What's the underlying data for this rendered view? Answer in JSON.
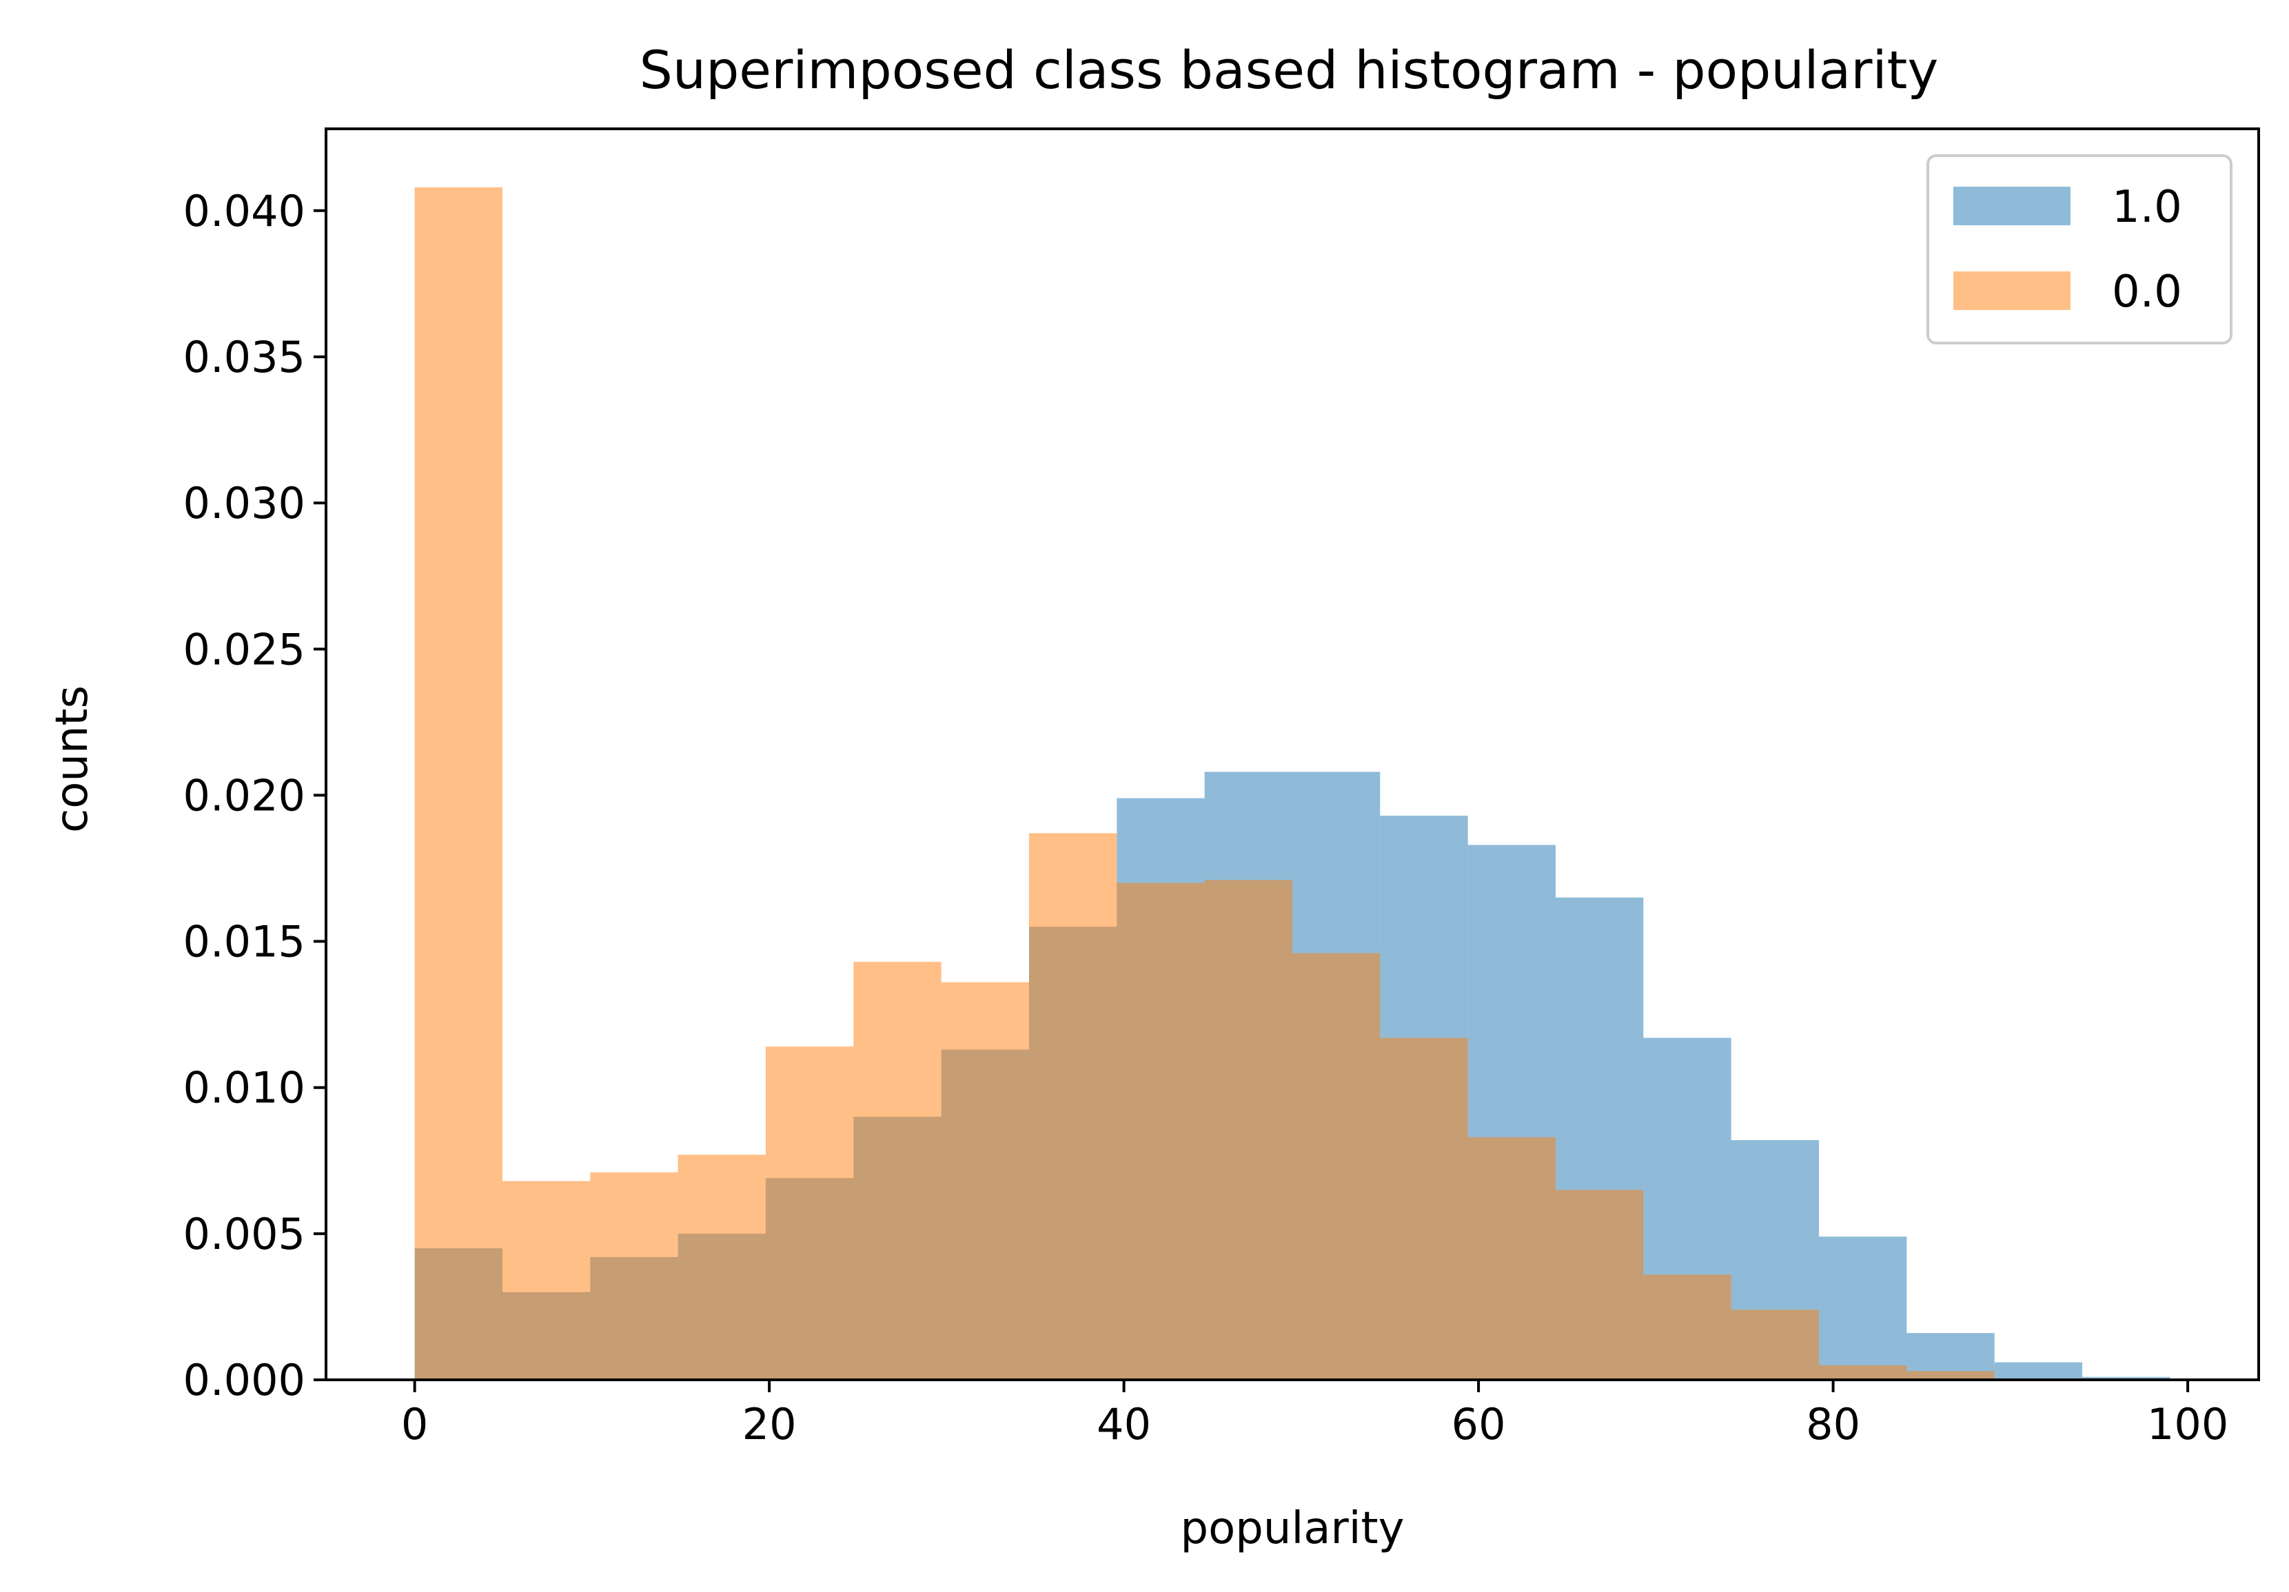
{
  "chart_data": {
    "type": "bar",
    "title": "Superimposed class based histogram - popularity",
    "xlabel": "popularity",
    "ylabel": "counts",
    "xlim": [
      -5,
      104
    ],
    "ylim": [
      0,
      0.0428
    ],
    "xticks": [
      0,
      20,
      40,
      60,
      80,
      100
    ],
    "xtick_labels": [
      "0",
      "20",
      "40",
      "60",
      "80",
      "100"
    ],
    "yticks": [
      0,
      0.005,
      0.01,
      0.015,
      0.02,
      0.025,
      0.03,
      0.035,
      0.04
    ],
    "ytick_labels": [
      "0.000",
      "0.005",
      "0.010",
      "0.015",
      "0.020",
      "0.025",
      "0.030",
      "0.035",
      "0.040"
    ],
    "grid": false,
    "legend_position": "top-right",
    "bin_edges": [
      0,
      4.95,
      9.9,
      14.85,
      19.8,
      24.75,
      29.7,
      34.65,
      39.6,
      44.55,
      49.5,
      54.45,
      59.4,
      64.35,
      69.3,
      74.25,
      79.2,
      84.15,
      89.1,
      94.05,
      99
    ],
    "series": [
      {
        "name": "1.0",
        "color": "#1f77b4",
        "opacity": 0.5,
        "values": [
          0.0045,
          0.003,
          0.0042,
          0.005,
          0.0069,
          0.009,
          0.0113,
          0.0155,
          0.0199,
          0.0208,
          0.0208,
          0.0193,
          0.0183,
          0.0165,
          0.0117,
          0.0082,
          0.0049,
          0.0016,
          0.0006,
          0.0001
        ]
      },
      {
        "name": "0.0",
        "color": "#ff7f0e",
        "opacity": 0.5,
        "values": [
          0.0408,
          0.0068,
          0.0071,
          0.0077,
          0.0114,
          0.0143,
          0.0136,
          0.0187,
          0.017,
          0.0171,
          0.0146,
          0.0117,
          0.0083,
          0.0065,
          0.0036,
          0.0024,
          0.0005,
          0.0003,
          0.0,
          0.0
        ]
      }
    ]
  }
}
